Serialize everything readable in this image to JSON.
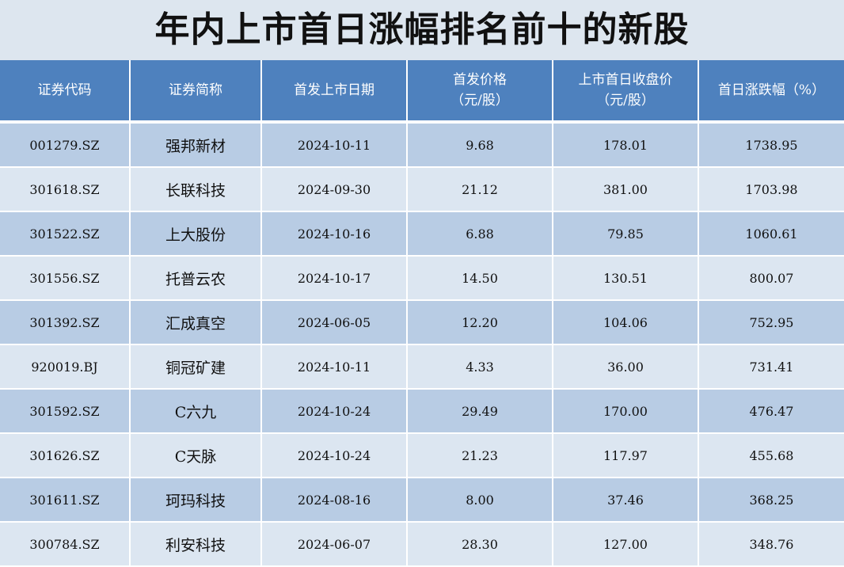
{
  "title": "年内上市首日涨幅排名前十的新股",
  "colors": {
    "header_bg": "#4e81be",
    "row_dark": "#b8cce4",
    "row_light": "#dce6f1",
    "page_bg": "#dde6ef"
  },
  "chart_data": {
    "type": "table",
    "title": "年内上市首日涨幅排名前十的新股",
    "columns": [
      {
        "key": "code",
        "lines": [
          "证券代码"
        ]
      },
      {
        "key": "name",
        "lines": [
          "证券简称"
        ]
      },
      {
        "key": "ipo_date",
        "lines": [
          "首发上市日期"
        ]
      },
      {
        "key": "ipo_price",
        "lines": [
          "首发价格",
          "（元/股）"
        ]
      },
      {
        "key": "close_price",
        "lines": [
          "上市首日收盘价",
          "（元/股）"
        ]
      },
      {
        "key": "change_pct",
        "lines": [
          "首日涨跌幅（%）"
        ]
      }
    ],
    "rows": [
      {
        "code": "001279.SZ",
        "name": "强邦新材",
        "ipo_date": "2024-10-11",
        "ipo_price": "9.68",
        "close_price": "178.01",
        "change_pct": "1738.95"
      },
      {
        "code": "301618.SZ",
        "name": "长联科技",
        "ipo_date": "2024-09-30",
        "ipo_price": "21.12",
        "close_price": "381.00",
        "change_pct": "1703.98"
      },
      {
        "code": "301522.SZ",
        "name": "上大股份",
        "ipo_date": "2024-10-16",
        "ipo_price": "6.88",
        "close_price": "79.85",
        "change_pct": "1060.61"
      },
      {
        "code": "301556.SZ",
        "name": "托普云农",
        "ipo_date": "2024-10-17",
        "ipo_price": "14.50",
        "close_price": "130.51",
        "change_pct": "800.07"
      },
      {
        "code": "301392.SZ",
        "name": "汇成真空",
        "ipo_date": "2024-06-05",
        "ipo_price": "12.20",
        "close_price": "104.06",
        "change_pct": "752.95"
      },
      {
        "code": "920019.BJ",
        "name": "铜冠矿建",
        "ipo_date": "2024-10-11",
        "ipo_price": "4.33",
        "close_price": "36.00",
        "change_pct": "731.41"
      },
      {
        "code": "301592.SZ",
        "name": "C六九",
        "ipo_date": "2024-10-24",
        "ipo_price": "29.49",
        "close_price": "170.00",
        "change_pct": "476.47"
      },
      {
        "code": "301626.SZ",
        "name": "C天脉",
        "ipo_date": "2024-10-24",
        "ipo_price": "21.23",
        "close_price": "117.97",
        "change_pct": "455.68"
      },
      {
        "code": "301611.SZ",
        "name": "珂玛科技",
        "ipo_date": "2024-08-16",
        "ipo_price": "8.00",
        "close_price": "37.46",
        "change_pct": "368.25"
      },
      {
        "code": "300784.SZ",
        "name": "利安科技",
        "ipo_date": "2024-06-07",
        "ipo_price": "28.30",
        "close_price": "127.00",
        "change_pct": "348.76"
      }
    ]
  }
}
